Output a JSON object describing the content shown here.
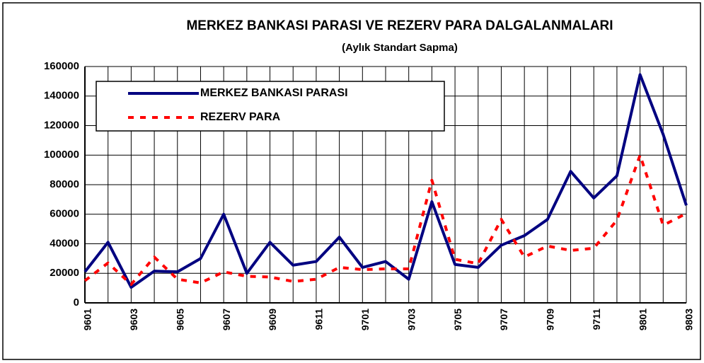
{
  "chart_data": {
    "type": "line",
    "title": "MERKEZ BANKASI PARASI VE REZERV PARA DALGALANMALARI",
    "subtitle": "(Aylık Standart Sapma)",
    "categories": [
      "9601",
      null,
      "9603",
      null,
      "9605",
      null,
      "9607",
      null,
      "9609",
      null,
      "9611",
      null,
      "9701",
      null,
      "9703",
      null,
      "9705",
      null,
      "9707",
      null,
      "9709",
      null,
      "9711",
      null,
      "9801",
      null,
      "9803"
    ],
    "series": [
      {
        "name": "MERKEZ BANKASI PARASI",
        "color": "#000080",
        "style": "solid",
        "values": [
          21000,
          41000,
          10500,
          21500,
          21000,
          30000,
          60000,
          20000,
          41000,
          25500,
          28000,
          44500,
          24000,
          28000,
          16000,
          68500,
          26000,
          24000,
          39000,
          45500,
          56500,
          89000,
          71000,
          86000,
          154500,
          114000,
          66000
        ]
      },
      {
        "name": "REZERV PARA",
        "color": "#ff0000",
        "style": "dashed",
        "values": [
          15000,
          27000,
          12500,
          31000,
          16000,
          13500,
          21000,
          18000,
          17500,
          14500,
          16000,
          24000,
          22500,
          23000,
          23000,
          83000,
          29500,
          26500,
          56500,
          31000,
          38500,
          35500,
          37000,
          56000,
          100000,
          52500,
          60500
        ]
      }
    ],
    "ylim": [
      0,
      160000
    ],
    "yticks": [
      0,
      20000,
      40000,
      60000,
      80000,
      100000,
      120000,
      140000,
      160000
    ],
    "grid": true,
    "legend": "upper left"
  }
}
